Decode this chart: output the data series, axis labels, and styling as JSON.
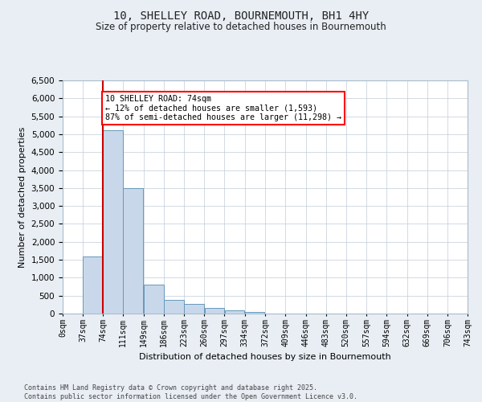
{
  "title_line1": "10, SHELLEY ROAD, BOURNEMOUTH, BH1 4HY",
  "title_line2": "Size of property relative to detached houses in Bournemouth",
  "xlabel": "Distribution of detached houses by size in Bournemouth",
  "ylabel": "Number of detached properties",
  "bar_color": "#c8d8ea",
  "bar_edge_color": "#6699bb",
  "vline_color": "#cc0000",
  "vline_x": 74,
  "bin_edges": [
    0,
    37,
    74,
    111,
    149,
    186,
    223,
    260,
    297,
    334,
    372,
    409,
    446,
    483,
    520,
    557,
    594,
    632,
    669,
    706,
    743
  ],
  "bar_heights": [
    5,
    1600,
    5100,
    3500,
    800,
    390,
    280,
    155,
    80,
    40,
    10,
    3,
    1,
    0,
    0,
    0,
    0,
    0,
    0,
    0
  ],
  "tick_labels": [
    "0sqm",
    "37sqm",
    "74sqm",
    "111sqm",
    "149sqm",
    "186sqm",
    "223sqm",
    "260sqm",
    "297sqm",
    "334sqm",
    "372sqm",
    "409sqm",
    "446sqm",
    "483sqm",
    "520sqm",
    "557sqm",
    "594sqm",
    "632sqm",
    "669sqm",
    "706sqm",
    "743sqm"
  ],
  "ylim": [
    0,
    6500
  ],
  "yticks": [
    0,
    500,
    1000,
    1500,
    2000,
    2500,
    3000,
    3500,
    4000,
    4500,
    5000,
    5500,
    6000,
    6500
  ],
  "annotation_text": "10 SHELLEY ROAD: 74sqm\n← 12% of detached houses are smaller (1,593)\n87% of semi-detached houses are larger (11,298) →",
  "footer_line1": "Contains HM Land Registry data © Crown copyright and database right 2025.",
  "footer_line2": "Contains public sector information licensed under the Open Government Licence v3.0.",
  "background_color": "#e8eef4",
  "plot_background_color": "#ffffff",
  "grid_color": "#c0ccd8"
}
